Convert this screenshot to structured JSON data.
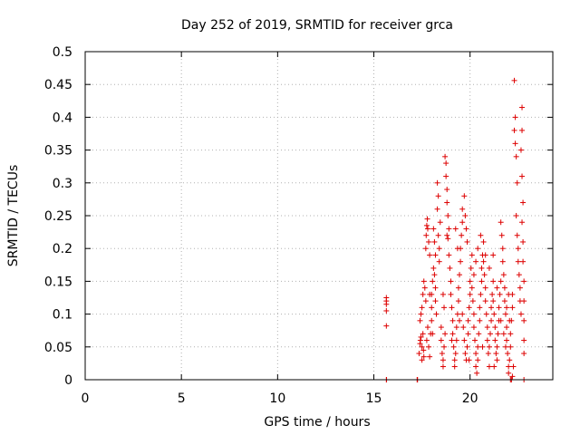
{
  "chart_data": {
    "type": "scatter",
    "title": "Day 252 of 2019, SRMTID for receiver grca",
    "xlabel": "GPS time / hours",
    "ylabel": "SRMTID / TECUs",
    "xlim": [
      0,
      24.3
    ],
    "ylim": [
      0,
      0.5
    ],
    "x_ticks": [
      0,
      5,
      10,
      15,
      20
    ],
    "x_tick_labels": [
      "0",
      "5",
      "10",
      "15",
      "20"
    ],
    "y_ticks": [
      0,
      0.05,
      0.1,
      0.15,
      0.2,
      0.25,
      0.3,
      0.35,
      0.4,
      0.45,
      0.5
    ],
    "y_tick_labels": [
      "0",
      "0.05",
      "0.1",
      "0.15",
      "0.2",
      "0.25",
      "0.3",
      "0.35",
      "0.4",
      "0.45",
      "0.5"
    ],
    "grid": true,
    "marker": "plus",
    "marker_color": "#dd0000",
    "series": [
      {
        "name": "SRMTID",
        "points": [
          [
            15.65,
            0.082
          ],
          [
            15.65,
            0.105
          ],
          [
            15.65,
            0.115
          ],
          [
            15.65,
            0.12
          ],
          [
            15.65,
            0.125
          ],
          [
            15.65,
            0.0
          ],
          [
            15.66,
            0.0
          ],
          [
            17.25,
            0.0
          ],
          [
            17.27,
            0.0
          ],
          [
            17.35,
            0.04
          ],
          [
            17.4,
            0.055
          ],
          [
            17.42,
            0.06
          ],
          [
            17.45,
            0.065
          ],
          [
            17.5,
            0.03
          ],
          [
            17.5,
            0.05
          ],
          [
            17.55,
            0.07
          ],
          [
            17.58,
            0.045
          ],
          [
            17.6,
            0.035
          ],
          [
            17.4,
            0.09
          ],
          [
            17.45,
            0.1
          ],
          [
            17.5,
            0.11
          ],
          [
            17.55,
            0.13
          ],
          [
            17.6,
            0.15
          ],
          [
            17.65,
            0.14
          ],
          [
            17.7,
            0.12
          ],
          [
            17.7,
            0.2
          ],
          [
            17.72,
            0.22
          ],
          [
            17.75,
            0.235
          ],
          [
            17.78,
            0.245
          ],
          [
            17.8,
            0.23
          ],
          [
            17.85,
            0.21
          ],
          [
            17.9,
            0.19
          ],
          [
            17.75,
            0.06
          ],
          [
            17.8,
            0.08
          ],
          [
            17.85,
            0.05
          ],
          [
            17.9,
            0.035
          ],
          [
            17.95,
            0.07
          ],
          [
            18.0,
            0.09
          ],
          [
            18.0,
            0.11
          ],
          [
            18.0,
            0.13
          ],
          [
            18.05,
            0.15
          ],
          [
            18.1,
            0.17
          ],
          [
            18.15,
            0.16
          ],
          [
            18.2,
            0.14
          ],
          [
            18.2,
            0.12
          ],
          [
            18.25,
            0.1
          ],
          [
            18.3,
            0.26
          ],
          [
            18.35,
            0.28
          ],
          [
            18.3,
            0.3
          ],
          [
            18.35,
            0.22
          ],
          [
            18.4,
            0.2
          ],
          [
            18.4,
            0.18
          ],
          [
            18.45,
            0.24
          ],
          [
            18.5,
            0.08
          ],
          [
            18.5,
            0.06
          ],
          [
            18.55,
            0.04
          ],
          [
            18.6,
            0.03
          ],
          [
            18.6,
            0.02
          ],
          [
            18.65,
            0.05
          ],
          [
            18.7,
            0.07
          ],
          [
            18.7,
            0.34
          ],
          [
            18.75,
            0.33
          ],
          [
            18.75,
            0.31
          ],
          [
            18.8,
            0.29
          ],
          [
            18.8,
            0.27
          ],
          [
            18.85,
            0.25
          ],
          [
            18.9,
            0.23
          ],
          [
            18.8,
            0.22
          ],
          [
            18.85,
            0.215
          ],
          [
            18.9,
            0.19
          ],
          [
            18.95,
            0.17
          ],
          [
            19.0,
            0.15
          ],
          [
            19.0,
            0.13
          ],
          [
            19.05,
            0.11
          ],
          [
            19.1,
            0.09
          ],
          [
            19.1,
            0.07
          ],
          [
            19.15,
            0.05
          ],
          [
            19.2,
            0.03
          ],
          [
            19.2,
            0.02
          ],
          [
            19.25,
            0.04
          ],
          [
            19.3,
            0.06
          ],
          [
            19.3,
            0.08
          ],
          [
            19.35,
            0.1
          ],
          [
            19.4,
            0.12
          ],
          [
            19.4,
            0.14
          ],
          [
            19.45,
            0.16
          ],
          [
            19.5,
            0.18
          ],
          [
            19.5,
            0.2
          ],
          [
            19.55,
            0.22
          ],
          [
            19.6,
            0.24
          ],
          [
            19.6,
            0.26
          ],
          [
            19.7,
            0.28
          ],
          [
            19.75,
            0.25
          ],
          [
            19.8,
            0.23
          ],
          [
            19.85,
            0.21
          ],
          [
            19.6,
            0.1
          ],
          [
            19.65,
            0.08
          ],
          [
            19.7,
            0.06
          ],
          [
            19.75,
            0.04
          ],
          [
            19.8,
            0.03
          ],
          [
            19.85,
            0.05
          ],
          [
            19.9,
            0.07
          ],
          [
            19.9,
            0.09
          ],
          [
            19.95,
            0.11
          ],
          [
            20.0,
            0.13
          ],
          [
            20.0,
            0.15
          ],
          [
            20.05,
            0.17
          ],
          [
            20.1,
            0.19
          ],
          [
            20.1,
            0.14
          ],
          [
            20.15,
            0.12
          ],
          [
            20.2,
            0.1
          ],
          [
            20.2,
            0.08
          ],
          [
            20.25,
            0.06
          ],
          [
            20.3,
            0.04
          ],
          [
            20.3,
            0.02
          ],
          [
            20.35,
            0.01
          ],
          [
            20.4,
            0.03
          ],
          [
            20.4,
            0.05
          ],
          [
            20.45,
            0.07
          ],
          [
            20.5,
            0.09
          ],
          [
            20.5,
            0.11
          ],
          [
            20.55,
            0.13
          ],
          [
            20.6,
            0.15
          ],
          [
            20.6,
            0.17
          ],
          [
            20.65,
            0.19
          ],
          [
            20.7,
            0.21
          ],
          [
            20.7,
            0.18
          ],
          [
            20.75,
            0.16
          ],
          [
            20.8,
            0.14
          ],
          [
            20.8,
            0.12
          ],
          [
            20.85,
            0.1
          ],
          [
            20.9,
            0.08
          ],
          [
            20.9,
            0.06
          ],
          [
            20.95,
            0.04
          ],
          [
            21.0,
            0.02
          ],
          [
            21.0,
            0.05
          ],
          [
            21.05,
            0.07
          ],
          [
            21.1,
            0.09
          ],
          [
            21.1,
            0.11
          ],
          [
            21.15,
            0.13
          ],
          [
            21.2,
            0.15
          ],
          [
            21.2,
            0.12
          ],
          [
            21.25,
            0.1
          ],
          [
            21.3,
            0.08
          ],
          [
            21.3,
            0.06
          ],
          [
            21.35,
            0.04
          ],
          [
            21.4,
            0.03
          ],
          [
            21.4,
            0.05
          ],
          [
            21.45,
            0.07
          ],
          [
            21.5,
            0.09
          ],
          [
            21.5,
            0.11
          ],
          [
            21.55,
            0.13
          ],
          [
            21.6,
            0.15
          ],
          [
            21.6,
            0.24
          ],
          [
            21.65,
            0.22
          ],
          [
            21.7,
            0.2
          ],
          [
            21.7,
            0.18
          ],
          [
            21.75,
            0.16
          ],
          [
            21.8,
            0.14
          ],
          [
            21.8,
            0.12
          ],
          [
            21.85,
            0.1
          ],
          [
            21.9,
            0.08
          ],
          [
            21.9,
            0.06
          ],
          [
            21.95,
            0.04
          ],
          [
            22.0,
            0.02
          ],
          [
            22.0,
            0.01
          ],
          [
            22.05,
            0.03
          ],
          [
            22.1,
            0.05
          ],
          [
            22.1,
            0.07
          ],
          [
            22.15,
            0.09
          ],
          [
            22.2,
            0.11
          ],
          [
            22.2,
            0.13
          ],
          [
            22.1,
            0.0
          ],
          [
            22.15,
            0.0
          ],
          [
            22.2,
            0.005
          ],
          [
            22.25,
            0.02
          ],
          [
            22.3,
            0.456
          ],
          [
            22.35,
            0.4
          ],
          [
            22.3,
            0.38
          ],
          [
            22.35,
            0.36
          ],
          [
            22.4,
            0.34
          ],
          [
            22.45,
            0.3
          ],
          [
            22.4,
            0.25
          ],
          [
            22.45,
            0.22
          ],
          [
            22.5,
            0.2
          ],
          [
            22.5,
            0.18
          ],
          [
            22.55,
            0.16
          ],
          [
            22.6,
            0.14
          ],
          [
            22.6,
            0.12
          ],
          [
            22.65,
            0.1
          ],
          [
            22.7,
            0.415
          ],
          [
            22.7,
            0.38
          ],
          [
            22.65,
            0.35
          ],
          [
            22.7,
            0.31
          ],
          [
            22.75,
            0.27
          ],
          [
            22.7,
            0.24
          ],
          [
            22.75,
            0.21
          ],
          [
            22.75,
            0.18
          ],
          [
            22.8,
            0.15
          ],
          [
            22.8,
            0.12
          ],
          [
            22.8,
            0.09
          ],
          [
            22.8,
            0.06
          ],
          [
            22.8,
            0.04
          ],
          [
            22.8,
            0.0
          ],
          [
            18.1,
            0.23
          ],
          [
            18.15,
            0.21
          ],
          [
            18.2,
            0.19
          ],
          [
            18.6,
            0.13
          ],
          [
            18.65,
            0.11
          ],
          [
            19.25,
            0.23
          ],
          [
            19.35,
            0.2
          ],
          [
            20.2,
            0.16
          ],
          [
            20.3,
            0.18
          ],
          [
            20.4,
            0.2
          ],
          [
            20.55,
            0.22
          ],
          [
            20.8,
            0.19
          ],
          [
            21.0,
            0.17
          ],
          [
            21.2,
            0.19
          ],
          [
            21.4,
            0.14
          ],
          [
            21.6,
            0.09
          ],
          [
            21.75,
            0.07
          ],
          [
            21.9,
            0.11
          ],
          [
            22.0,
            0.13
          ],
          [
            17.9,
            0.13
          ],
          [
            18.05,
            0.07
          ],
          [
            19.05,
            0.06
          ],
          [
            19.45,
            0.09
          ],
          [
            19.95,
            0.03
          ],
          [
            20.65,
            0.05
          ],
          [
            21.25,
            0.02
          ],
          [
            21.85,
            0.05
          ],
          [
            22.05,
            0.09
          ]
        ]
      }
    ]
  }
}
